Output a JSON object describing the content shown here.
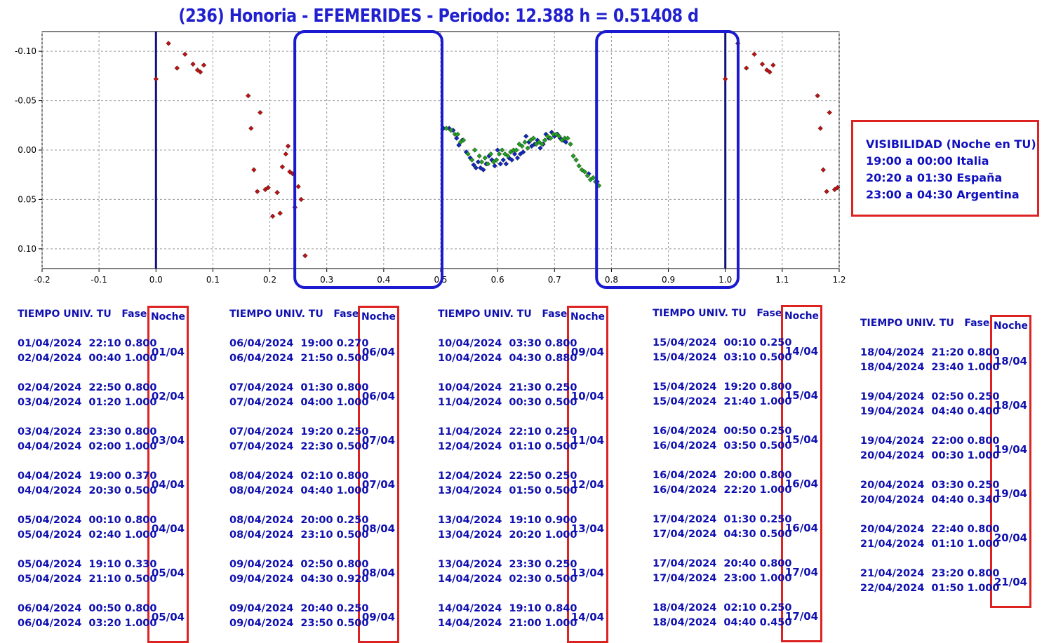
{
  "title": "(236) Honoria  - EFEMERIDES - Periodo: 12.388 h = 0.51408 d",
  "visibility": {
    "lines": [
      "VISIBILIDAD (Noche en TU)",
      "19:00 a 00:00 Italia",
      "20:20 a 01:30 España",
      "23:00 a 04:30 Argentina"
    ]
  },
  "colors": {
    "title": "#2020d0",
    "table_text": "#1010b0",
    "red_box": "#dd2222",
    "window_box": "#1a1ad0",
    "marker_line": "#10107a",
    "series_red": "#c01010",
    "series_blue": "#1028c0",
    "series_green": "#20a020"
  },
  "chart_data": {
    "type": "scatter",
    "title": "(236) Honoria  - EFEMERIDES - Periodo: 12.388 h = 0.51408 d",
    "xlabel": "",
    "ylabel": "",
    "xlim": [
      -0.2,
      1.2
    ],
    "ylim": [
      -0.12,
      0.12
    ],
    "y_inverted": true,
    "grid": true,
    "x_ticks": [
      "-0.2",
      "-0.1",
      "0.0",
      "0.1",
      "0.2",
      "0.3",
      "0.4",
      "0.5",
      "0.6",
      "0.7",
      "0.8",
      "0.9",
      "1.0",
      "1.1",
      "1.2"
    ],
    "y_ticks": [
      "-0.10",
      "-0.05",
      "0.00",
      "0.05",
      "0.10"
    ],
    "vertical_lines": [
      0.0,
      1.0
    ],
    "highlight_windows": [
      [
        0.25,
        0.5
      ],
      [
        0.78,
        1.02
      ]
    ],
    "series": [
      {
        "color": "red",
        "points": [
          [
            0.0,
            -0.072
          ],
          [
            0.022,
            -0.108
          ],
          [
            0.037,
            -0.083
          ],
          [
            0.051,
            -0.097
          ],
          [
            0.065,
            -0.087
          ],
          [
            0.073,
            -0.081
          ],
          [
            0.078,
            -0.079
          ],
          [
            0.084,
            -0.086
          ],
          [
            0.162,
            -0.055
          ],
          [
            0.167,
            -0.022
          ],
          [
            0.183,
            -0.038
          ],
          [
            0.172,
            0.02
          ],
          [
            0.178,
            0.042
          ],
          [
            0.192,
            0.04
          ],
          [
            0.197,
            0.038
          ],
          [
            0.205,
            0.067
          ],
          [
            0.213,
            0.043
          ],
          [
            0.218,
            0.064
          ],
          [
            0.222,
            0.017
          ],
          [
            0.228,
            0.004
          ],
          [
            0.232,
            -0.004
          ],
          [
            0.235,
            0.022
          ],
          [
            0.24,
            0.024
          ],
          [
            0.244,
            0.058
          ],
          [
            0.25,
            0.037
          ],
          [
            0.255,
            0.05
          ],
          [
            0.262,
            0.107
          ],
          [
            1.0,
            -0.072
          ],
          [
            1.022,
            -0.108
          ],
          [
            1.037,
            -0.083
          ],
          [
            1.051,
            -0.097
          ],
          [
            1.065,
            -0.087
          ],
          [
            1.073,
            -0.081
          ],
          [
            1.078,
            -0.079
          ],
          [
            1.084,
            -0.086
          ],
          [
            1.162,
            -0.055
          ],
          [
            1.167,
            -0.022
          ],
          [
            1.183,
            -0.038
          ],
          [
            1.172,
            0.02
          ],
          [
            1.178,
            0.042
          ],
          [
            1.192,
            0.04
          ],
          [
            1.197,
            0.038
          ]
        ]
      },
      {
        "color": "blue",
        "points": [
          [
            0.505,
            -0.022
          ],
          [
            0.515,
            -0.022
          ],
          [
            0.522,
            -0.02
          ],
          [
            0.528,
            -0.012
          ],
          [
            0.532,
            -0.005
          ],
          [
            0.538,
            -0.01
          ],
          [
            0.545,
            0.002
          ],
          [
            0.552,
            0.008
          ],
          [
            0.558,
            0.015
          ],
          [
            0.562,
            0.018
          ],
          [
            0.566,
            0.012
          ],
          [
            0.57,
            0.018
          ],
          [
            0.575,
            0.02
          ],
          [
            0.58,
            0.014
          ],
          [
            0.585,
            0.006
          ],
          [
            0.59,
            0.01
          ],
          [
            0.595,
            0.016
          ],
          [
            0.6,
            0.0
          ],
          [
            0.605,
            0.014
          ],
          [
            0.61,
            0.01
          ],
          [
            0.615,
            0.014
          ],
          [
            0.62,
            0.008
          ],
          [
            0.625,
            0.01
          ],
          [
            0.63,
            0.004
          ],
          [
            0.635,
            0.008
          ],
          [
            0.64,
            0.004
          ],
          [
            0.645,
            0.002
          ],
          [
            0.65,
            -0.014
          ],
          [
            0.655,
            -0.008
          ],
          [
            0.66,
            -0.004
          ],
          [
            0.665,
            -0.006
          ],
          [
            0.67,
            -0.01
          ],
          [
            0.675,
            -0.002
          ],
          [
            0.68,
            -0.006
          ],
          [
            0.685,
            -0.016
          ],
          [
            0.69,
            -0.012
          ],
          [
            0.695,
            -0.018
          ],
          [
            0.7,
            -0.014
          ],
          [
            0.705,
            -0.016
          ],
          [
            0.71,
            -0.012
          ],
          [
            0.715,
            -0.01
          ],
          [
            0.72,
            -0.008
          ],
          [
            0.76,
            0.024
          ],
          [
            0.775,
            0.032
          ]
        ]
      },
      {
        "color": "green",
        "points": [
          [
            0.51,
            -0.022
          ],
          [
            0.518,
            -0.02
          ],
          [
            0.525,
            -0.016
          ],
          [
            0.53,
            -0.016
          ],
          [
            0.535,
            -0.008
          ],
          [
            0.54,
            -0.01
          ],
          [
            0.548,
            0.004
          ],
          [
            0.555,
            0.01
          ],
          [
            0.56,
            0.0
          ],
          [
            0.568,
            0.006
          ],
          [
            0.572,
            0.012
          ],
          [
            0.578,
            0.008
          ],
          [
            0.583,
            0.014
          ],
          [
            0.588,
            0.004
          ],
          [
            0.593,
            0.012
          ],
          [
            0.598,
            0.01
          ],
          [
            0.603,
            0.004
          ],
          [
            0.608,
            0.0
          ],
          [
            0.613,
            0.004
          ],
          [
            0.618,
            0.006
          ],
          [
            0.623,
            0.002
          ],
          [
            0.628,
            0.0
          ],
          [
            0.633,
            0.0
          ],
          [
            0.638,
            -0.006
          ],
          [
            0.643,
            -0.004
          ],
          [
            0.648,
            -0.008
          ],
          [
            0.653,
            -0.002
          ],
          [
            0.658,
            -0.01
          ],
          [
            0.663,
            -0.012
          ],
          [
            0.668,
            -0.006
          ],
          [
            0.673,
            -0.008
          ],
          [
            0.678,
            -0.006
          ],
          [
            0.683,
            -0.01
          ],
          [
            0.688,
            -0.014
          ],
          [
            0.693,
            -0.012
          ],
          [
            0.698,
            -0.016
          ],
          [
            0.703,
            -0.016
          ],
          [
            0.708,
            -0.014
          ],
          [
            0.713,
            -0.01
          ],
          [
            0.718,
            -0.012
          ],
          [
            0.723,
            -0.012
          ],
          [
            0.728,
            -0.006
          ],
          [
            0.733,
            0.006
          ],
          [
            0.738,
            0.01
          ],
          [
            0.743,
            0.016
          ],
          [
            0.748,
            0.02
          ],
          [
            0.753,
            0.022
          ],
          [
            0.758,
            0.026
          ],
          [
            0.763,
            0.03
          ],
          [
            0.768,
            0.028
          ],
          [
            0.772,
            0.032
          ],
          [
            0.778,
            0.036
          ]
        ]
      }
    ]
  },
  "columns": [
    {
      "header": "TIEMPO UNIV. TU   Fase",
      "noche_header": "Noche",
      "rows": [
        {
          "l1": "01/04/2024  22:10 0.800",
          "l2": "02/04/2024  00:40 1.000",
          "noche": "01/04"
        },
        {
          "l1": "02/04/2024  22:50 0.800",
          "l2": "03/04/2024  01:20 1.000",
          "noche": "02/04"
        },
        {
          "l1": "03/04/2024  23:30 0.800",
          "l2": "04/04/2024  02:00 1.000",
          "noche": "03/04"
        },
        {
          "l1": "04/04/2024  19:00 0.370",
          "l2": "04/04/2024  20:30 0.500",
          "noche": "04/04"
        },
        {
          "l1": "05/04/2024  00:10 0.800",
          "l2": "05/04/2024  02:40 1.000",
          "noche": "04/04"
        },
        {
          "l1": "05/04/2024  19:10 0.330",
          "l2": "05/04/2024  21:10 0.500",
          "noche": "05/04"
        },
        {
          "l1": "06/04/2024  00:50 0.800",
          "l2": "06/04/2024  03:20 1.000",
          "noche": "05/04"
        }
      ]
    },
    {
      "header": "TIEMPO UNIV. TU   Fase",
      "noche_header": "Noche",
      "rows": [
        {
          "l1": "06/04/2024  19:00 0.270",
          "l2": "06/04/2024  21:50 0.500",
          "noche": "06/04"
        },
        {
          "l1": "07/04/2024  01:30 0.800",
          "l2": "07/04/2024  04:00 1.000",
          "noche": "06/04"
        },
        {
          "l1": "07/04/2024  19:20 0.250",
          "l2": "07/04/2024  22:30 0.500",
          "noche": "07/04"
        },
        {
          "l1": "08/04/2024  02:10 0.800",
          "l2": "08/04/2024  04:40 1.000",
          "noche": "07/04"
        },
        {
          "l1": "08/04/2024  20:00 0.250",
          "l2": "08/04/2024  23:10 0.500",
          "noche": "08/04"
        },
        {
          "l1": "09/04/2024  02:50 0.800",
          "l2": "09/04/2024  04:30 0.920",
          "noche": "08/04"
        },
        {
          "l1": "09/04/2024  20:40 0.250",
          "l2": "09/04/2024  23:50 0.500",
          "noche": "09/04"
        }
      ]
    },
    {
      "header": "TIEMPO UNIV. TU   Fase",
      "noche_header": "Noche",
      "rows": [
        {
          "l1": "10/04/2024  03:30 0.800",
          "l2": "10/04/2024  04:30 0.880",
          "noche": "09/04"
        },
        {
          "l1": "10/04/2024  21:30 0.250",
          "l2": "11/04/2024  00:30 0.500",
          "noche": "10/04"
        },
        {
          "l1": "11/04/2024  22:10 0.250",
          "l2": "12/04/2024  01:10 0.500",
          "noche": "11/04"
        },
        {
          "l1": "12/04/2024  22:50 0.250",
          "l2": "13/04/2024  01:50 0.500",
          "noche": "12/04"
        },
        {
          "l1": "13/04/2024  19:10 0.900",
          "l2": "13/04/2024  20:20 1.000",
          "noche": "13/04"
        },
        {
          "l1": "13/04/2024  23:30 0.250",
          "l2": "14/04/2024  02:30 0.500",
          "noche": "13/04"
        },
        {
          "l1": "14/04/2024  19:10 0.840",
          "l2": "14/04/2024  21:00 1.000",
          "noche": "14/04"
        }
      ]
    },
    {
      "header": "TIEMPO UNIV. TU   Fase",
      "noche_header": "Noche",
      "rows": [
        {
          "l1": "15/04/2024  00:10 0.250",
          "l2": "15/04/2024  03:10 0.500",
          "noche": "14/04"
        },
        {
          "l1": "15/04/2024  19:20 0.800",
          "l2": "15/04/2024  21:40 1.000",
          "noche": "15/04"
        },
        {
          "l1": "16/04/2024  00:50 0.250",
          "l2": "16/04/2024  03:50 0.500",
          "noche": "15/04"
        },
        {
          "l1": "16/04/2024  20:00 0.800",
          "l2": "16/04/2024  22:20 1.000",
          "noche": "16/04"
        },
        {
          "l1": "17/04/2024  01:30 0.250",
          "l2": "17/04/2024  04:30 0.500",
          "noche": "16/04"
        },
        {
          "l1": "17/04/2024  20:40 0.800",
          "l2": "17/04/2024  23:00 1.000",
          "noche": "17/04"
        },
        {
          "l1": "18/04/2024  02:10 0.250",
          "l2": "18/04/2024  04:40 0.450",
          "noche": "17/04"
        }
      ]
    },
    {
      "header": "TIEMPO UNIV. TU   Fase",
      "noche_header": "Noche",
      "rows": [
        {
          "l1": "18/04/2024  21:20 0.800",
          "l2": "18/04/2024  23:40 1.000",
          "noche": "18/04"
        },
        {
          "l1": "19/04/2024  02:50 0.250",
          "l2": "19/04/2024  04:40 0.400",
          "noche": "18/04"
        },
        {
          "l1": "19/04/2024  22:00 0.800",
          "l2": "20/04/2024  00:30 1.000",
          "noche": "19/04"
        },
        {
          "l1": "20/04/2024  03:30 0.250",
          "l2": "20/04/2024  04:40 0.340",
          "noche": "19/04"
        },
        {
          "l1": "20/04/2024  22:40 0.800",
          "l2": "21/04/2024  01:10 1.000",
          "noche": "20/04"
        },
        {
          "l1": "21/04/2024  23:20 0.800",
          "l2": "22/04/2024  01:50 1.000",
          "noche": "21/04"
        }
      ]
    }
  ]
}
